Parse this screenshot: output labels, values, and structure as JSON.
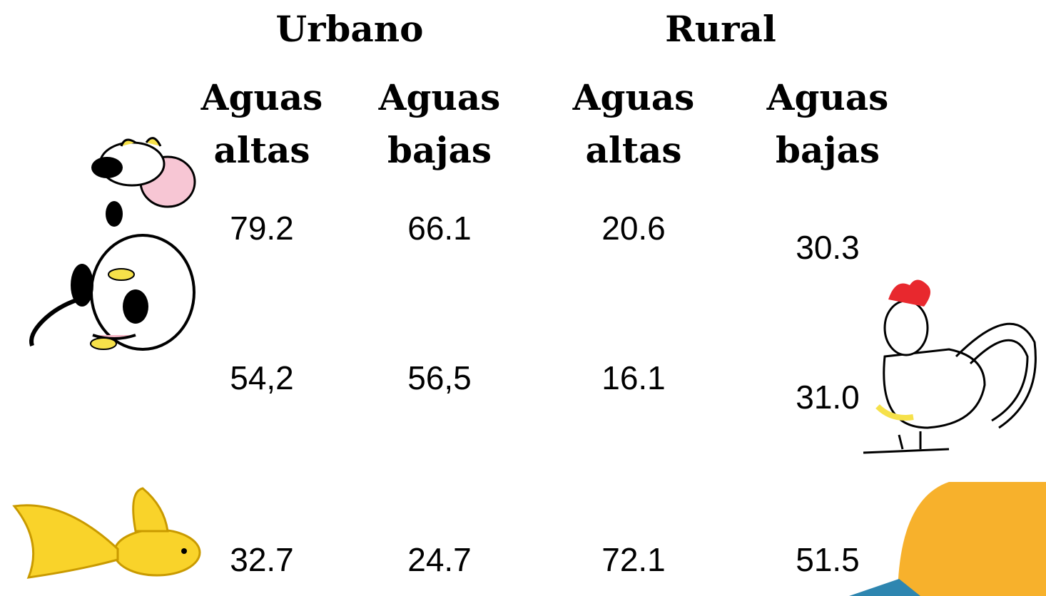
{
  "table": {
    "groups": [
      "Urbano",
      "Rural"
    ],
    "columns": [
      "Aguas altas",
      "Aguas bajas",
      "Aguas altas",
      "Aguas bajas"
    ],
    "rows": [
      [
        "79.2",
        "66.1",
        "20.6",
        "30.3"
      ],
      [
        "54,2",
        "56,5",
        "16.1",
        "31.0"
      ],
      [
        "32.7",
        "24.7",
        "72.1",
        "51.5"
      ]
    ]
  }
}
